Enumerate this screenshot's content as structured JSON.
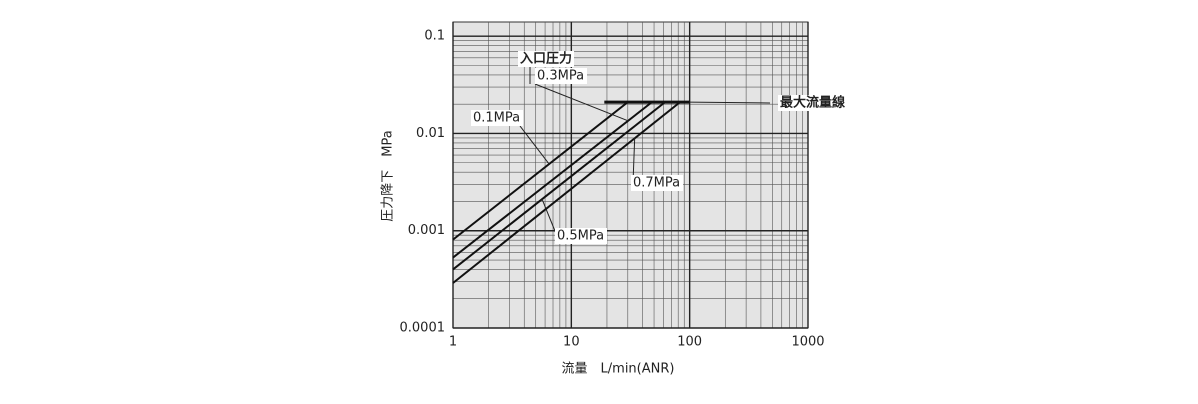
{
  "chart_data": {
    "type": "line",
    "log_x": true,
    "log_y": true,
    "grid": true,
    "xlabel": "流量　L/min(ANR)",
    "ylabel": "圧力降下　MPa",
    "annotation": "入口圧力",
    "xlim": [
      1,
      1000
    ],
    "xticks": [
      1,
      10,
      100,
      1000
    ],
    "ylim": [
      0.0001,
      0.14
    ],
    "yticks": [
      0.1,
      0.01,
      0.001,
      0.0001
    ],
    "series": [
      {
        "name": "0.1MPa",
        "color": "#111111",
        "x": [
          1,
          30
        ],
        "values": [
          0.00081,
          0.021
        ]
      },
      {
        "name": "0.3MPa",
        "color": "#111111",
        "x": [
          1,
          48
        ],
        "values": [
          0.00053,
          0.021
        ]
      },
      {
        "name": "0.5MPa",
        "color": "#111111",
        "x": [
          1,
          62
        ],
        "values": [
          0.0004,
          0.021
        ]
      },
      {
        "name": "0.7MPa",
        "color": "#111111",
        "x": [
          1,
          83
        ],
        "values": [
          0.00029,
          0.021
        ]
      },
      {
        "name": "最大流量線",
        "color": "#111111",
        "x": [
          19,
          100
        ],
        "values": [
          0.021,
          0.021
        ]
      }
    ]
  }
}
